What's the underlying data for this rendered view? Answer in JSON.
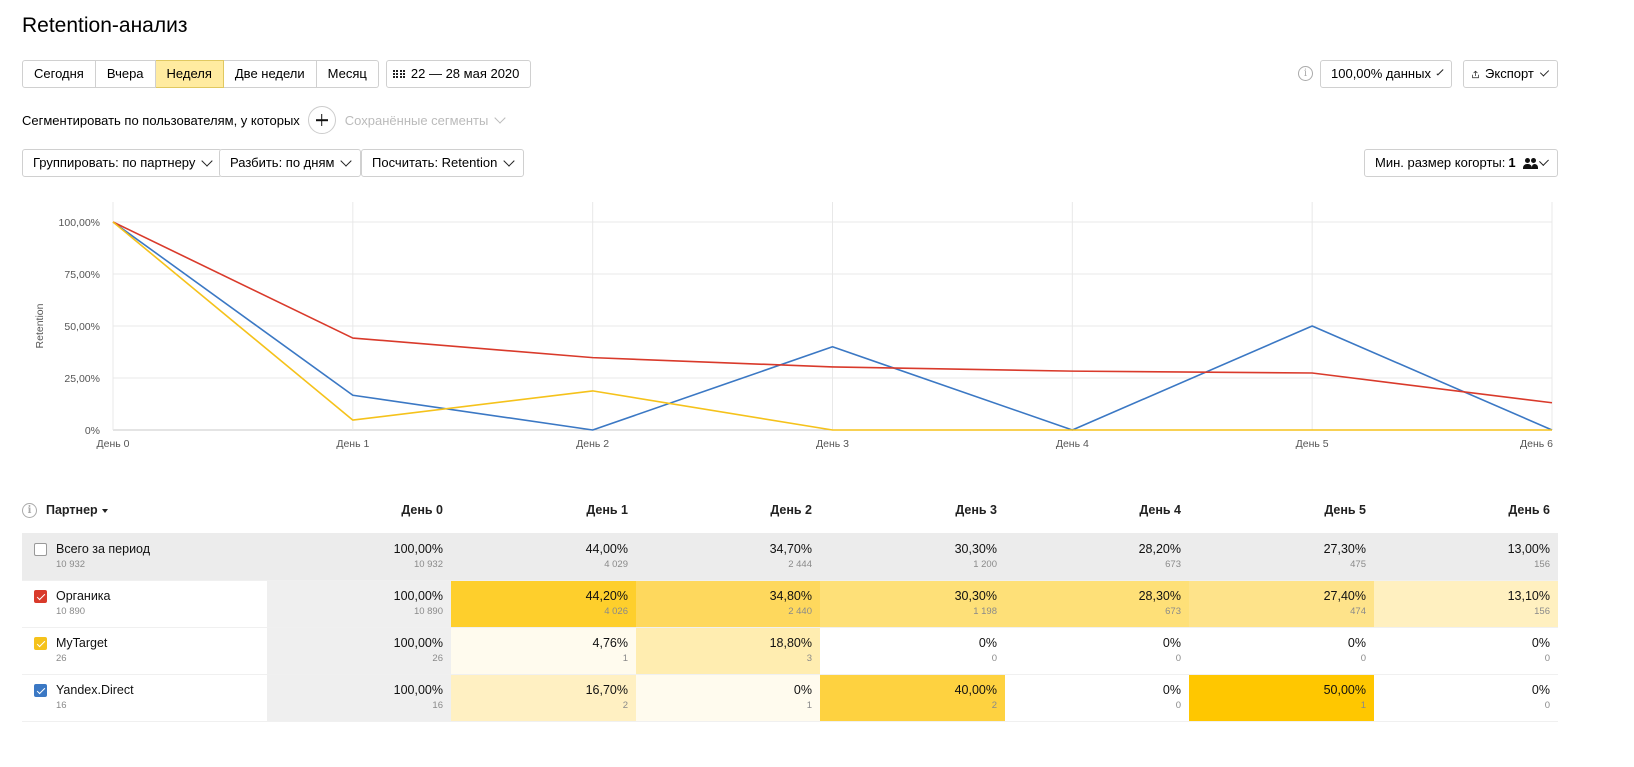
{
  "page": {
    "title": "Retention-анализ"
  },
  "periods": [
    {
      "label": "Сегодня",
      "active": false
    },
    {
      "label": "Вчера",
      "active": false
    },
    {
      "label": "Неделя",
      "active": true
    },
    {
      "label": "Две недели",
      "active": false
    },
    {
      "label": "Месяц",
      "active": false
    }
  ],
  "date_range": "22 — 28 мая 2020",
  "data_sampling": "100,00% данных",
  "export_label": "Экспорт",
  "segment": {
    "label": "Сегментировать по пользователям, у которых",
    "saved_segments": "Сохранённые сегменты"
  },
  "controls": {
    "group_by": "Группировать: по партнеру",
    "split": "Разбить: по дням",
    "calculate": "Посчитать: Retention",
    "min_cohort_label": "Мин. размер когорты:",
    "min_cohort_value": "1"
  },
  "chart_data": {
    "type": "line",
    "ylabel": "Retention",
    "categories": [
      "День 0",
      "День 1",
      "День 2",
      "День 3",
      "День 4",
      "День 5",
      "День 6"
    ],
    "y_ticks": [
      "0%",
      "25,00%",
      "50,00%",
      "75,00%",
      "100,00%"
    ],
    "ylim": [
      0,
      100
    ],
    "series": [
      {
        "name": "Органика",
        "color": "#d93a2b",
        "values": [
          100,
          44.2,
          34.8,
          30.3,
          28.3,
          27.4,
          13.1
        ]
      },
      {
        "name": "MyTarget",
        "color": "#f5c21b",
        "values": [
          100,
          4.76,
          18.8,
          0,
          0,
          0,
          0
        ]
      },
      {
        "name": "Yandex.Direct",
        "color": "#3b78c4",
        "values": [
          100,
          16.7,
          0,
          40,
          0,
          50,
          0
        ]
      }
    ]
  },
  "table": {
    "partner_header": "Партнер",
    "day_headers": [
      "День 0",
      "День 1",
      "День 2",
      "День 3",
      "День 4",
      "День 5",
      "День 6"
    ],
    "rows": [
      {
        "name": "Всего за период",
        "count": "10 932",
        "checked": false,
        "color": "",
        "cells": [
          {
            "v": "100,00%",
            "c": "10 932",
            "bg": ""
          },
          {
            "v": "44,00%",
            "c": "4 029",
            "bg": ""
          },
          {
            "v": "34,70%",
            "c": "2 444",
            "bg": ""
          },
          {
            "v": "30,30%",
            "c": "1 200",
            "bg": ""
          },
          {
            "v": "28,20%",
            "c": "673",
            "bg": ""
          },
          {
            "v": "27,30%",
            "c": "475",
            "bg": ""
          },
          {
            "v": "13,00%",
            "c": "156",
            "bg": ""
          }
        ]
      },
      {
        "name": "Органика",
        "count": "10 890",
        "checked": true,
        "color": "#d93a2b",
        "cells": [
          {
            "v": "100,00%",
            "c": "10 890",
            "bg": "#efefef"
          },
          {
            "v": "44,20%",
            "c": "4 026",
            "bg": "#fecf2c"
          },
          {
            "v": "34,80%",
            "c": "2 440",
            "bg": "#fed85d"
          },
          {
            "v": "30,30%",
            "c": "1 198",
            "bg": "#fee078"
          },
          {
            "v": "28,30%",
            "c": "673",
            "bg": "#fee078"
          },
          {
            "v": "27,40%",
            "c": "474",
            "bg": "#fee38a"
          },
          {
            "v": "13,10%",
            "c": "156",
            "bg": "#fff0c0"
          }
        ]
      },
      {
        "name": "MyTarget",
        "count": "26",
        "checked": true,
        "color": "#f5c21b",
        "cells": [
          {
            "v": "100,00%",
            "c": "26",
            "bg": "#efefef"
          },
          {
            "v": "4,76%",
            "c": "1",
            "bg": "#fffbee"
          },
          {
            "v": "18,80%",
            "c": "3",
            "bg": "#ffedb0"
          },
          {
            "v": "0%",
            "c": "0",
            "bg": ""
          },
          {
            "v": "0%",
            "c": "0",
            "bg": ""
          },
          {
            "v": "0%",
            "c": "0",
            "bg": ""
          },
          {
            "v": "0%",
            "c": "0",
            "bg": ""
          }
        ]
      },
      {
        "name": "Yandex.Direct",
        "count": "16",
        "checked": true,
        "color": "#3b78c4",
        "cells": [
          {
            "v": "100,00%",
            "c": "16",
            "bg": "#efefef"
          },
          {
            "v": "16,70%",
            "c": "2",
            "bg": "#fff0c2"
          },
          {
            "v": "0%",
            "c": "1",
            "bg": "#fffbee"
          },
          {
            "v": "40,00%",
            "c": "2",
            "bg": "#fed240"
          },
          {
            "v": "0%",
            "c": "0",
            "bg": ""
          },
          {
            "v": "50,00%",
            "c": "1",
            "bg": "#ffc700"
          },
          {
            "v": "0%",
            "c": "0",
            "bg": ""
          }
        ]
      }
    ]
  }
}
